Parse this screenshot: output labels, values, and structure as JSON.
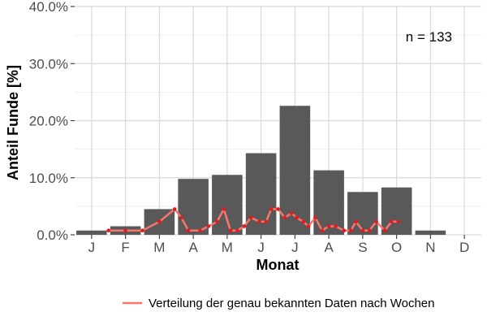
{
  "chart_data": {
    "type": "bar",
    "categories": [
      "J",
      "F",
      "M",
      "A",
      "M",
      "J",
      "J",
      "A",
      "S",
      "O",
      "N",
      "D"
    ],
    "values": [
      0.75,
      1.5,
      4.5,
      9.8,
      10.5,
      14.3,
      22.6,
      11.3,
      7.5,
      8.3,
      0.75,
      0
    ],
    "bar_color": "#595959",
    "xlabel": "Monat",
    "ylabel": "Anteil Funde [%]",
    "ylim": [
      0,
      40
    ],
    "yticks": [
      0,
      10,
      20,
      30,
      40
    ],
    "ytick_labels": [
      "0.0%",
      "10.0%",
      "20.0%",
      "30.0%",
      "40.0%"
    ],
    "grid": true,
    "annotation": "n = 133",
    "line_series": {
      "name": "Verteilung der genau bekannten Daten nach Wochen",
      "color": "#f8766d",
      "point_color": "#e41a1c",
      "x": [
        1.5,
        2.0,
        2.5,
        3.0,
        3.45,
        3.65,
        3.85,
        4.2,
        4.45,
        4.7,
        4.9,
        5.1,
        5.3,
        5.5,
        5.7,
        5.95,
        6.15,
        6.3,
        6.5,
        6.7,
        6.9,
        7.05,
        7.25,
        7.4,
        7.6,
        7.8,
        8.0,
        8.2,
        8.45,
        8.65,
        8.8,
        9.0,
        9.2,
        9.4,
        9.65,
        9.85,
        10.05
      ],
      "y": [
        0.75,
        0.75,
        0.75,
        2.3,
        4.5,
        3.0,
        0.75,
        0.75,
        1.5,
        2.3,
        4.5,
        0.75,
        0.75,
        1.5,
        3.0,
        2.3,
        2.3,
        4.5,
        4.5,
        3.0,
        3.8,
        3.0,
        2.3,
        1.5,
        3.0,
        0.75,
        1.5,
        1.5,
        0.75,
        0.75,
        2.3,
        0.75,
        0.75,
        2.3,
        0.75,
        2.3,
        2.3
      ]
    },
    "legend_position": "bottom"
  }
}
